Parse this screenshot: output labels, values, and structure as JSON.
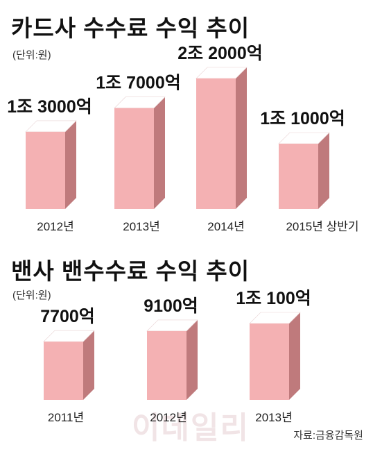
{
  "watermark": "이데일리",
  "source": "자료:금융감독원",
  "colors": {
    "front": "#f4b1b3",
    "top": "#ffffff",
    "side": "#bf7a7c",
    "shadow": "#ededed"
  },
  "chart_data": [
    {
      "type": "bar",
      "title": "카드사 수수료 수익 추이",
      "unit_label": "(단위:원)",
      "categories": [
        "2012년",
        "2013년",
        "2014년",
        "2015년 상반기"
      ],
      "values": [
        1300000000000,
        1700000000000,
        2200000000000,
        1100000000000
      ],
      "value_labels": [
        "1조 3000억",
        "1조 7000억",
        "2조 2000억",
        "1조 1000억"
      ],
      "grid": false,
      "legend": "none"
    },
    {
      "type": "bar",
      "title": "밴사 밴수수료 수익 추이",
      "unit_label": "(단위:원)",
      "categories": [
        "2011년",
        "2012년",
        "2013년"
      ],
      "values": [
        770000000000,
        910000000000,
        1010000000000
      ],
      "value_labels": [
        "7700억",
        "9100억",
        "1조 100억"
      ],
      "grid": false,
      "legend": "none"
    }
  ]
}
